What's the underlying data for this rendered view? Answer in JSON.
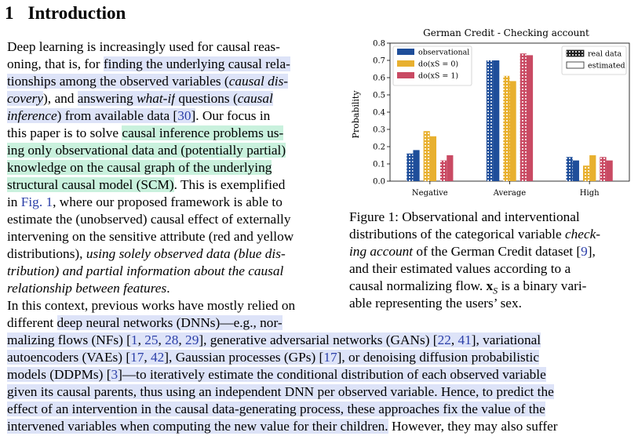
{
  "heading": {
    "number": "1",
    "title": "Introduction"
  },
  "left_lines": [
    [
      {
        "t": "Deep learning is increasingly used for causal reas-"
      }
    ],
    [
      {
        "t": "oning, that is, for "
      },
      {
        "t": "finding the underlying causal rela-",
        "h": "b"
      }
    ],
    [
      {
        "t": "tionships among the observed variables (",
        "h": "b"
      },
      {
        "t": "causal dis-",
        "h": "b",
        "i": 1
      }
    ],
    [
      {
        "t": "covery",
        "h": "b",
        "i": 1
      },
      {
        "t": "), and "
      },
      {
        "t": "answering ",
        "h": "b"
      },
      {
        "t": "what-if",
        "h": "b",
        "i": 1
      },
      {
        "t": " questions (",
        "h": "b"
      },
      {
        "t": "causal",
        "h": "b",
        "i": 1
      }
    ],
    [
      {
        "t": "inference",
        "h": "b",
        "i": 1
      },
      {
        "t": ") from available data [",
        "h": "b"
      },
      {
        "t": "30",
        "c": 1,
        "h": "b"
      },
      {
        "t": "]",
        "h": "b"
      },
      {
        "t": ".   Our focus in"
      }
    ],
    [
      {
        "t": "this paper is to solve "
      },
      {
        "t": "causal inference problems us-",
        "h": "g"
      }
    ],
    [
      {
        "t": "ing only observational data and (potentially partial)",
        "h": "g"
      }
    ],
    [
      {
        "t": "knowledge on the causal graph of the underlying",
        "h": "g"
      }
    ],
    [
      {
        "t": "structural causal model (SCM)",
        "h": "g"
      },
      {
        "t": ". This is exemplified"
      }
    ],
    [
      {
        "t": "in "
      },
      {
        "t": "Fig. 1",
        "c": 1
      },
      {
        "t": ", where our proposed framework is able to"
      }
    ],
    [
      {
        "t": "estimate the (unobserved) causal effect of externally"
      }
    ],
    [
      {
        "t": "intervening on the sensitive attribute (red and yellow"
      }
    ],
    [
      {
        "t": "distributions), "
      },
      {
        "t": "using solely observed data (blue dis-",
        "i": 1
      }
    ],
    [
      {
        "t": "tribution) and partial information about the causal",
        "i": 1
      }
    ],
    [
      {
        "t": "relationship between features",
        "i": 1
      },
      {
        "t": "."
      }
    ],
    [
      {
        "t": "In this context, previous works have mostly relied on"
      }
    ],
    [
      {
        "t": "different "
      },
      {
        "t": "deep neural networks (DNNs)—e.g., nor-",
        "h": "b"
      }
    ]
  ],
  "full_lines": [
    [
      {
        "t": "malizing flows (NFs) [",
        "h": "b"
      },
      {
        "t": "1",
        "c": 1,
        "h": "b"
      },
      {
        "t": ", ",
        "h": "b"
      },
      {
        "t": "25",
        "c": 1,
        "h": "b"
      },
      {
        "t": ", ",
        "h": "b"
      },
      {
        "t": "28",
        "c": 1,
        "h": "b"
      },
      {
        "t": ", ",
        "h": "b"
      },
      {
        "t": "29",
        "c": 1,
        "h": "b"
      },
      {
        "t": "], generative adversarial networks (GANs) [",
        "h": "b"
      },
      {
        "t": "22",
        "c": 1,
        "h": "b"
      },
      {
        "t": ", ",
        "h": "b"
      },
      {
        "t": "41",
        "c": 1,
        "h": "b"
      },
      {
        "t": "], variational",
        "h": "b"
      }
    ],
    [
      {
        "t": "autoencoders (VAEs) [",
        "h": "b"
      },
      {
        "t": "17",
        "c": 1,
        "h": "b"
      },
      {
        "t": ", ",
        "h": "b"
      },
      {
        "t": "42",
        "c": 1,
        "h": "b"
      },
      {
        "t": "], Gaussian processes (GPs) [",
        "h": "b"
      },
      {
        "t": "17",
        "c": 1,
        "h": "b"
      },
      {
        "t": "], or denoising diffusion probabilistic",
        "h": "b"
      }
    ],
    [
      {
        "t": "models (DDPMs) [",
        "h": "b"
      },
      {
        "t": "3",
        "c": 1,
        "h": "b"
      },
      {
        "t": "]—to iteratively estimate the conditional distribution of each observed variable",
        "h": "b"
      }
    ],
    [
      {
        "t": "given its causal parents, thus using an independent DNN per observed variable. Hence, to predict the",
        "h": "b"
      }
    ],
    [
      {
        "t": "effect of an intervention in the causal data-generating process, these approaches fix the value of the",
        "h": "b"
      }
    ],
    [
      {
        "t": "intervened variables when computing the new value for their children.",
        "h": "b"
      },
      {
        "t": " However, they may also suffer"
      }
    ]
  ],
  "caption_lines": [
    [
      {
        "t": "Figure 1:  Observational and interventional"
      }
    ],
    [
      {
        "t": "distributions of the categorical variable "
      },
      {
        "t": "check-",
        "i": 1
      }
    ],
    [
      {
        "t": "ing account",
        "i": 1
      },
      {
        "t": " of the German Credit dataset ["
      },
      {
        "t": "9",
        "c": 1
      },
      {
        "t": "],"
      }
    ],
    [
      {
        "t": "and their estimated values according to a"
      }
    ],
    [
      {
        "t": "causal normalizing flow. "
      },
      {
        "t": "x",
        "b": 1
      },
      {
        "t": "S",
        "sub": 1,
        "i": 1
      },
      {
        "t": " is a binary vari-"
      }
    ],
    [
      {
        "t": "able representing the users’ sex."
      }
    ]
  ],
  "chart_data": {
    "type": "bar",
    "title": "German Credit - Checking account",
    "ylabel": "Probability",
    "xlabel": "",
    "categories": [
      "Negative",
      "Average",
      "High"
    ],
    "ylim": [
      0,
      0.8
    ],
    "yticks": [
      "0.0",
      "0.1",
      "0.2",
      "0.3",
      "0.4",
      "0.5",
      "0.6",
      "0.7",
      "0.8"
    ],
    "series": [
      {
        "name": "observational",
        "color": "#1f4e9a",
        "real": [
          0.16,
          0.7,
          0.14
        ],
        "estimated": [
          0.18,
          0.7,
          0.12
        ]
      },
      {
        "name": "do(xS = 0)",
        "color": "#e8b02f",
        "real": [
          0.29,
          0.61,
          0.09
        ],
        "estimated": [
          0.26,
          0.58,
          0.15
        ]
      },
      {
        "name": "do(xS = 1)",
        "color": "#c94a63",
        "real": [
          0.12,
          0.74,
          0.14
        ],
        "estimated": [
          0.15,
          0.73,
          0.12
        ]
      }
    ],
    "legend_series_placement": "top-left",
    "legend_style": [
      "real data",
      "estimated"
    ],
    "legend_style_placement": "top-right"
  }
}
